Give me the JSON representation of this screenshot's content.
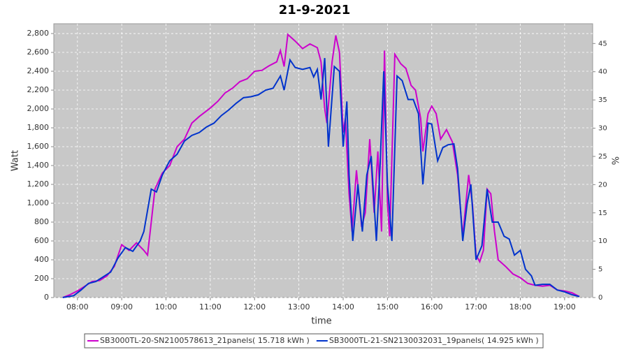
{
  "chart_data": {
    "type": "line",
    "title": "21-9-2021",
    "xlabel": "time",
    "ylabel": "Watt",
    "y2label": "%",
    "xlim": [
      "07:28",
      "19:38"
    ],
    "xticks": [
      "08:00",
      "09:00",
      "10:00",
      "11:00",
      "12:00",
      "13:00",
      "14:00",
      "15:00",
      "16:00",
      "17:00",
      "18:00",
      "19:00"
    ],
    "ylim": [
      0,
      2904
    ],
    "yticks": [
      0,
      200,
      400,
      600,
      800,
      {
        "value": 1000,
        "label": "1,000"
      },
      {
        "value": 1200,
        "label": "1,200"
      },
      {
        "value": 1400,
        "label": "1,400"
      },
      {
        "value": 1600,
        "label": "1,600"
      },
      {
        "value": 1800,
        "label": "1,800"
      },
      {
        "value": 2000,
        "label": "2,000"
      },
      {
        "value": 2200,
        "label": "2,200"
      },
      {
        "value": 2400,
        "label": "2,400"
      },
      {
        "value": 2600,
        "label": "2,600"
      },
      {
        "value": 2800,
        "label": "2,800"
      }
    ],
    "y2lim": [
      0,
      48.5
    ],
    "y2ticks": [
      0,
      5,
      10,
      15,
      20,
      25,
      30,
      35,
      40,
      45
    ],
    "grid": true,
    "legend": "bottom",
    "series": [
      {
        "name": "SB3000TL-20-SN2100578613_21panels( 15.718 kWh )",
        "color": "#cc00cc",
        "x": [
          "07:40",
          "07:50",
          "08:00",
          "08:10",
          "08:20",
          "08:30",
          "08:40",
          "08:50",
          "09:00",
          "09:10",
          "09:20",
          "09:30",
          "09:35",
          "09:45",
          "09:55",
          "10:05",
          "10:15",
          "10:25",
          "10:35",
          "10:45",
          "11:00",
          "11:10",
          "11:20",
          "11:30",
          "11:40",
          "11:50",
          "12:00",
          "12:10",
          "12:20",
          "12:30",
          "12:35",
          "12:40",
          "12:45",
          "12:55",
          "13:05",
          "13:15",
          "13:25",
          "13:30",
          "13:35",
          "13:38",
          "13:45",
          "13:50",
          "13:55",
          "14:00",
          "14:03",
          "14:08",
          "14:12",
          "14:18",
          "14:25",
          "14:30",
          "14:36",
          "14:42",
          "14:47",
          "14:52",
          "14:56",
          "15:00",
          "15:03",
          "15:10",
          "15:18",
          "15:25",
          "15:32",
          "15:38",
          "15:45",
          "15:48",
          "15:55",
          "16:00",
          "16:06",
          "16:12",
          "16:20",
          "16:28",
          "16:35",
          "16:42",
          "16:50",
          "16:55",
          "17:00",
          "17:05",
          "17:10",
          "17:15",
          "17:20",
          "17:25",
          "17:30",
          "17:40",
          "17:50",
          "18:00",
          "18:10",
          "18:20",
          "18:30",
          "18:40",
          "18:50",
          "19:00",
          "19:10",
          "19:20"
        ],
        "values": [
          0,
          30,
          70,
          120,
          170,
          180,
          230,
          330,
          560,
          500,
          580,
          500,
          450,
          1150,
          1320,
          1400,
          1600,
          1680,
          1850,
          1920,
          2010,
          2080,
          2170,
          2220,
          2290,
          2320,
          2400,
          2410,
          2460,
          2500,
          2620,
          2450,
          2790,
          2720,
          2640,
          2690,
          2650,
          2500,
          2000,
          1850,
          2500,
          2780,
          2600,
          1750,
          1900,
          1100,
          700,
          1350,
          750,
          900,
          1680,
          900,
          1550,
          700,
          2620,
          1000,
          650,
          2580,
          2480,
          2430,
          2250,
          2200,
          1900,
          1550,
          1950,
          2030,
          1950,
          1680,
          1780,
          1650,
          1300,
          650,
          1300,
          1000,
          450,
          380,
          500,
          1150,
          1100,
          700,
          400,
          330,
          250,
          210,
          150,
          130,
          120,
          130,
          80,
          70,
          50,
          10
        ]
      },
      {
        "name": "SB3000TL-21-SN2130032031_19panels( 14.925 kWh )",
        "color": "#0033cc",
        "x": [
          "07:40",
          "07:55",
          "08:05",
          "08:15",
          "08:25",
          "08:35",
          "08:45",
          "08:55",
          "09:05",
          "09:15",
          "09:25",
          "09:30",
          "09:40",
          "09:47",
          "09:55",
          "10:05",
          "10:15",
          "10:25",
          "10:35",
          "10:45",
          "10:55",
          "11:05",
          "11:15",
          "11:25",
          "11:35",
          "11:45",
          "11:55",
          "12:05",
          "12:15",
          "12:25",
          "12:35",
          "12:40",
          "12:48",
          "12:55",
          "13:05",
          "13:15",
          "13:20",
          "13:25",
          "13:30",
          "13:35",
          "13:40",
          "13:48",
          "13:55",
          "14:00",
          "14:05",
          "14:08",
          "14:13",
          "14:20",
          "14:26",
          "14:32",
          "14:38",
          "14:45",
          "14:50",
          "14:55",
          "15:00",
          "15:06",
          "15:13",
          "15:20",
          "15:28",
          "15:35",
          "15:42",
          "15:48",
          "15:55",
          "16:00",
          "16:08",
          "16:15",
          "16:22",
          "16:30",
          "16:35",
          "16:42",
          "16:48",
          "16:53",
          "17:00",
          "17:08",
          "17:15",
          "17:22",
          "17:30",
          "17:38",
          "17:45",
          "17:52",
          "18:00",
          "18:07",
          "18:15",
          "18:20",
          "18:30",
          "18:40",
          "18:50",
          "19:00",
          "19:10",
          "19:20"
        ],
        "values": [
          0,
          20,
          80,
          150,
          170,
          220,
          270,
          420,
          530,
          490,
          600,
          700,
          1150,
          1120,
          1300,
          1450,
          1520,
          1660,
          1720,
          1750,
          1810,
          1850,
          1930,
          1990,
          2060,
          2120,
          2130,
          2150,
          2200,
          2220,
          2350,
          2200,
          2520,
          2440,
          2420,
          2440,
          2340,
          2420,
          2100,
          2540,
          1600,
          2450,
          2400,
          1600,
          2080,
          1300,
          600,
          1200,
          700,
          1300,
          1500,
          600,
          1400,
          2400,
          1200,
          600,
          2350,
          2300,
          2100,
          2100,
          1950,
          1200,
          1850,
          1840,
          1450,
          1590,
          1620,
          1630,
          1370,
          600,
          1000,
          1200,
          400,
          550,
          1150,
          800,
          800,
          650,
          620,
          450,
          500,
          300,
          230,
          130,
          140,
          140,
          80,
          60,
          30,
          10
        ]
      }
    ]
  }
}
